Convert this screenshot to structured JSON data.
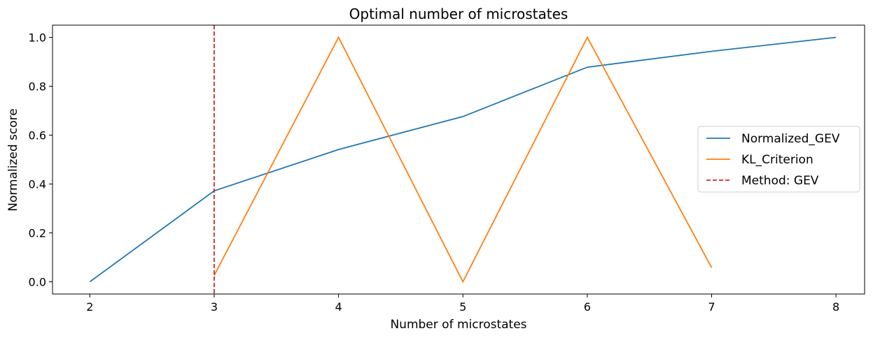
{
  "chart_data": {
    "type": "line",
    "title": "Optimal number of microstates",
    "xlabel": "Number of microstates",
    "ylabel": "Normalized score",
    "xlim": [
      1.7,
      8.23
    ],
    "ylim": [
      -0.05,
      1.05
    ],
    "xticks": [
      "2",
      "3",
      "4",
      "5",
      "6",
      "7",
      "8"
    ],
    "yticks": [
      "0.0",
      "0.2",
      "0.4",
      "0.6",
      "0.8",
      "1.0"
    ],
    "grid": false,
    "legend_position": "center-right",
    "series": [
      {
        "name": "Normalized_GEV",
        "color": "#1f77b4",
        "style": "solid",
        "x": [
          2,
          3,
          4,
          5,
          6,
          7,
          8
        ],
        "y": [
          0.0,
          0.372,
          0.541,
          0.676,
          0.878,
          0.943,
          1.0
        ]
      },
      {
        "name": "KL_Criterion",
        "color": "#ff7f0e",
        "style": "solid",
        "x": [
          3,
          4,
          5,
          6,
          7
        ],
        "y": [
          0.026,
          1.0,
          0.0,
          1.0,
          0.058
        ]
      }
    ],
    "vline": {
      "name": "Method: GEV",
      "x": 3,
      "color": "#d62728",
      "style": "dashed"
    }
  }
}
